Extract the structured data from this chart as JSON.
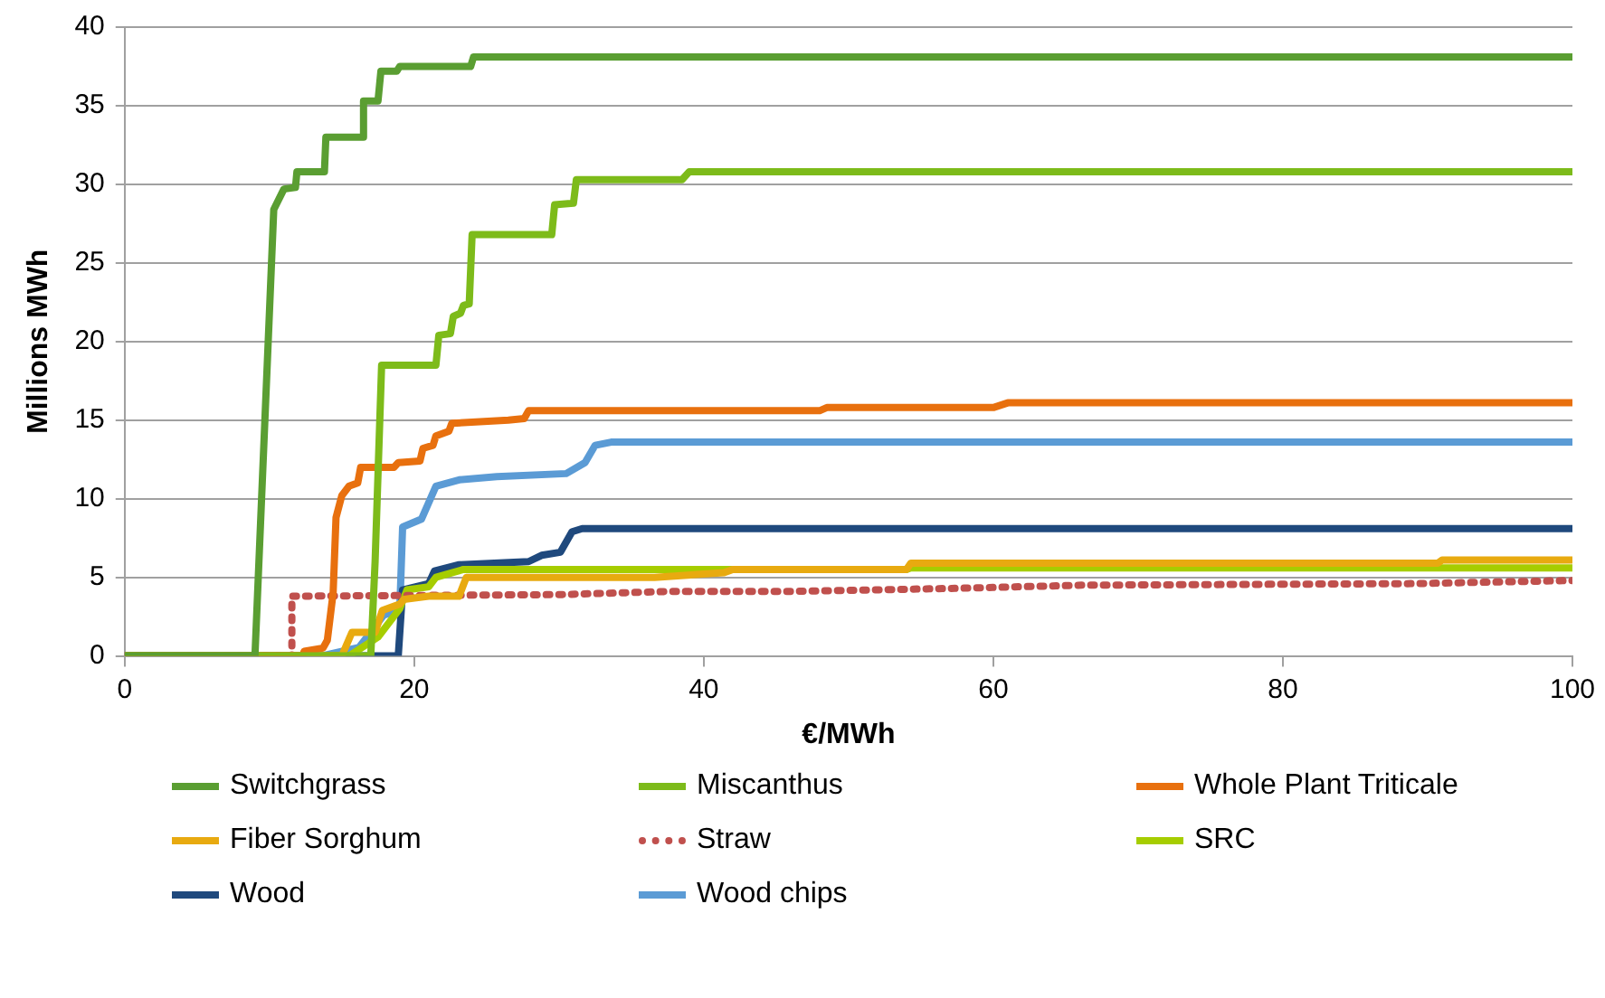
{
  "chart_data": {
    "type": "line",
    "xlabel": "€/MWh",
    "ylabel": "Millions MWh",
    "xlim": [
      0,
      100
    ],
    "xticks": [
      0,
      20,
      40,
      60,
      80,
      100
    ],
    "ylim": [
      0,
      40
    ],
    "yticks": [
      0,
      5,
      10,
      15,
      20,
      25,
      30,
      35,
      40
    ],
    "grid": "y",
    "legend": "bottom",
    "marker": "none",
    "line_style": "solid",
    "series": [
      {
        "name": "Switchgrass",
        "color": "#5a9e32",
        "x": [
          0,
          9.0,
          10.3,
          11.0,
          11.8,
          11.9,
          13.8,
          13.9,
          16.4,
          16.5,
          17.5,
          17.7,
          18.8,
          19.0,
          23.9,
          24.1,
          100
        ],
        "values": [
          0,
          0,
          28.4,
          29.7,
          29.8,
          30.8,
          30.8,
          33.0,
          33.0,
          35.3,
          35.3,
          37.2,
          37.2,
          37.5,
          37.5,
          38.1,
          38.1
        ]
      },
      {
        "name": "Miscanthus",
        "color": "#7dbb1a",
        "x": [
          0,
          17.0,
          17.3,
          17.75,
          21.5,
          21.7,
          22.5,
          22.7,
          23.2,
          23.4,
          23.8,
          24.0,
          29.5,
          29.7,
          31.0,
          31.2,
          38.5,
          39,
          100
        ],
        "values": [
          0,
          0,
          6,
          18.5,
          18.5,
          20.4,
          20.5,
          21.6,
          21.8,
          22.3,
          22.4,
          26.8,
          26.8,
          28.7,
          28.8,
          30.3,
          30.3,
          30.8,
          30.8
        ]
      },
      {
        "name": "Whole Plant Triticale",
        "color": "#e8700e",
        "x": [
          0,
          12.3,
          12.4,
          13.7,
          14.0,
          14.4,
          14.6,
          15.0,
          15.5,
          16.1,
          16.3,
          18.6,
          18.9,
          20.4,
          20.6,
          21.3,
          21.5,
          22.4,
          22.6,
          26.5,
          27.6,
          27.9,
          48,
          48.5,
          60,
          61,
          100
        ],
        "values": [
          0,
          0,
          0.3,
          0.5,
          1.0,
          4,
          8.8,
          10.2,
          10.8,
          11.0,
          12.0,
          12.0,
          12.3,
          12.4,
          13.2,
          13.4,
          14.0,
          14.3,
          14.8,
          15.0,
          15.1,
          15.6,
          15.6,
          15.8,
          15.8,
          16.1,
          16.1
        ]
      },
      {
        "name": "Fiber Sorghum",
        "color": "#e8aa10",
        "x": [
          0,
          15.0,
          15.7,
          17.3,
          17.8,
          19.0,
          19.3,
          21.0,
          23.1,
          23.6,
          36.6,
          41.4,
          42,
          54,
          54.3,
          90.7,
          91,
          100
        ],
        "values": [
          0,
          0,
          1.5,
          1.5,
          2.9,
          3.3,
          3.6,
          3.8,
          3.8,
          5.0,
          5.0,
          5.3,
          5.5,
          5.5,
          5.9,
          5.9,
          6.1,
          6.1
        ]
      },
      {
        "name": "Straw",
        "color": "#c0504d",
        "line_style": "dotted",
        "x": [
          0,
          11.55,
          11.55,
          30,
          37.5,
          45.7,
          57.4,
          66.1,
          89,
          100
        ],
        "values": [
          0,
          0,
          3.8,
          3.9,
          4.1,
          4.1,
          4.3,
          4.5,
          4.6,
          4.8
        ]
      },
      {
        "name": "SRC",
        "color": "#a6cd00",
        "x": [
          0,
          15.5,
          17.5,
          19.0,
          19.5,
          21,
          21.5,
          23.4,
          54,
          54.3,
          100
        ],
        "values": [
          0,
          0,
          1.2,
          3.0,
          4.2,
          4.4,
          5.0,
          5.5,
          5.5,
          5.6,
          5.6
        ]
      },
      {
        "name": "Wood",
        "color": "#1f497d",
        "x": [
          0,
          18.9,
          19.2,
          21.0,
          21.4,
          23.1,
          27.9,
          28.8,
          30.1,
          30.9,
          31.6,
          100
        ],
        "values": [
          0,
          0,
          4.2,
          4.6,
          5.4,
          5.8,
          6.0,
          6.4,
          6.6,
          7.9,
          8.1,
          8.1
        ]
      },
      {
        "name": "Wood chips",
        "color": "#5b9bd5",
        "x": [
          0,
          13.6,
          16.2,
          17.9,
          19.0,
          19.2,
          20.5,
          21.5,
          23.1,
          25.7,
          30.5,
          31.8,
          32.5,
          33.6,
          100
        ],
        "values": [
          0,
          0,
          0.55,
          2.6,
          2.9,
          8.2,
          8.7,
          10.8,
          11.2,
          11.4,
          11.6,
          12.3,
          13.4,
          13.6,
          13.6
        ]
      }
    ]
  }
}
